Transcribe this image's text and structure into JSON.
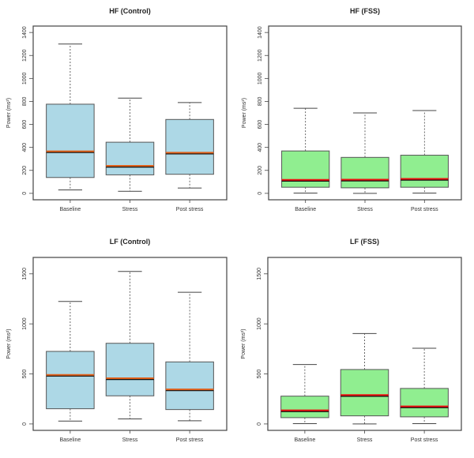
{
  "chart_data": [
    {
      "type": "box",
      "title": "HF (Control)",
      "ylabel": "Power (ms²)",
      "ylim": [
        0,
        1400
      ],
      "yticks": [
        0,
        200,
        400,
        600,
        800,
        1000,
        1200,
        1400
      ],
      "categories": [
        "Baseline",
        "Stress",
        "Post stress"
      ],
      "fill": "#add8e6",
      "median_color": "#e0601a",
      "boxes": [
        {
          "min": 30,
          "q1": 138,
          "median": 362,
          "q3": 776,
          "max": 1300
        },
        {
          "min": 18,
          "q1": 161,
          "median": 235,
          "q3": 445,
          "max": 829
        },
        {
          "min": 46,
          "q1": 166,
          "median": 350,
          "q3": 643,
          "max": 790
        }
      ]
    },
    {
      "type": "box",
      "title": "HF (FSS)",
      "ylabel": "Power (ms²)",
      "ylim": [
        0,
        1400
      ],
      "yticks": [
        0,
        200,
        400,
        600,
        800,
        1000,
        1200,
        1400
      ],
      "categories": [
        "Baseline",
        "Stress",
        "Post stress"
      ],
      "fill": "#90ee90",
      "median_color": "#ee1111",
      "boxes": [
        {
          "min": 2,
          "q1": 53,
          "median": 113,
          "q3": 369,
          "max": 740
        },
        {
          "min": 0,
          "q1": 48,
          "median": 115,
          "q3": 313,
          "max": 700
        },
        {
          "min": 2,
          "q1": 53,
          "median": 122,
          "q3": 332,
          "max": 721
        }
      ]
    },
    {
      "type": "box",
      "title": "LF (Control)",
      "ylabel": "Power (ms²)",
      "ylim": [
        0,
        1600
      ],
      "yticks": [
        0,
        500,
        1000,
        1500
      ],
      "categories": [
        "Baseline",
        "Stress",
        "Post stress"
      ],
      "fill": "#add8e6",
      "median_color": "#e0601a",
      "boxes": [
        {
          "min": 29,
          "q1": 152,
          "median": 486,
          "q3": 725,
          "max": 1224
        },
        {
          "min": 50,
          "q1": 281,
          "median": 452,
          "q3": 806,
          "max": 1524
        },
        {
          "min": 32,
          "q1": 144,
          "median": 341,
          "q3": 620,
          "max": 1316
        }
      ]
    },
    {
      "type": "box",
      "title": "LF (FSS)",
      "ylabel": "Power (ms²)",
      "ylim": [
        0,
        1600
      ],
      "yticks": [
        0,
        500,
        1000,
        1500
      ],
      "categories": [
        "Baseline",
        "Stress",
        "Post stress"
      ],
      "fill": "#90ee90",
      "median_color": "#ee1111",
      "boxes": [
        {
          "min": 3,
          "q1": 63,
          "median": 131,
          "q3": 278,
          "max": 594
        },
        {
          "min": 0,
          "q1": 81,
          "median": 284,
          "q3": 544,
          "max": 904
        },
        {
          "min": 3,
          "q1": 71,
          "median": 171,
          "q3": 355,
          "max": 757
        }
      ]
    }
  ]
}
